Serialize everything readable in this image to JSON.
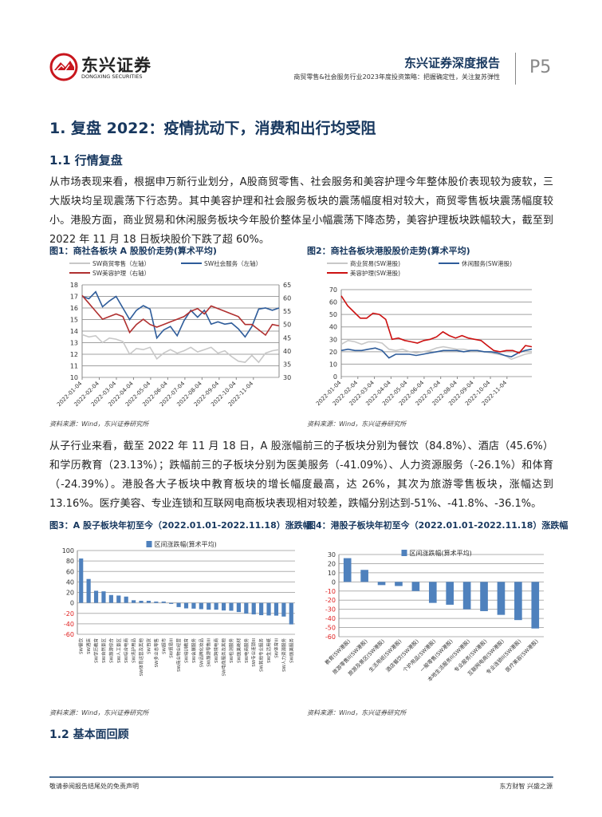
{
  "header": {
    "logo_cn": "东兴证券",
    "logo_en": "DONGXING SECURITIES",
    "report_type": "东兴证券深度报告",
    "subtitle": "商贸零售&社会服务行业2023年度投资策略：把握确定性，关注复苏弹性",
    "page": "P5"
  },
  "section": {
    "h1": "1. 复盘 2022：疫情扰动下，消费和出行均受阻",
    "h2_1": "1.1 行情复盘",
    "p1": "从市场表现来看，根据申万新行业划分，A股商贸零售、社会服务和美容护理今年整体股价表现较为疲软，三大版块均呈现震荡下行态势。其中美容护理和社会服务板块的震荡幅度相对较大，商贸零售板块震荡幅度较小。港股方面，商业贸易和休闲服务板块今年股价整体呈小幅震荡下降态势，美容护理板块跌幅较大，截至到 2022 年 11 月 18 日板块股价下跌了超 60%。",
    "p2": "从子行业来看，截至 2022 年 11 月 18 日，A 股涨幅前三的子板块分别为餐饮（84.8%）、酒店（45.6%）和学历教育（23.13%）；跌幅前三的子板块分别为医美服务（-41.09%）、人力资源服务（-26.1%）和体育（-24.39%）。港股各大子板块中教育板块的增长幅度最高，达 26%，其次为旅游零售板块，涨幅达到 13.16%。医疗美容、专业连锁和互联网电商板块表现相对较差，跌幅分别达到-51%、-41.8%、-36.1%。",
    "h2_2": "1.2 基本面回顾"
  },
  "source_note": "资料来源：Wind，东兴证券研究所",
  "footer": {
    "left": "敬请参阅报告结尾处的免责声明",
    "right": "东方财智 兴盛之源"
  },
  "colors": {
    "navy": "#17375e",
    "logo_red": "#c8161d",
    "blue": "#2e5c9a",
    "red_line": "#b03030",
    "gray_line": "#c8c8c8",
    "bar": "#4f81bd",
    "neg_tick": "#e02020"
  },
  "chart_data": [
    {
      "type": "line",
      "title": "图1：商社各板块 A 股股价走势(算术平均)",
      "x_ticks": [
        "2022-01-04",
        "2022-02-04",
        "2022-03-04",
        "2022-04-04",
        "2022-05-04",
        "2022-06-04",
        "2022-07-04",
        "2022-08-04",
        "2022-09-04",
        "2022-10-04",
        "2022-11-04"
      ],
      "ylim_left": [
        10,
        18
      ],
      "yticks_left": [
        "10",
        "11",
        "12",
        "13",
        "14",
        "15",
        "16",
        "17",
        "18"
      ],
      "ylim_right": [
        30,
        65
      ],
      "yticks_right": [
        "30",
        "35",
        "40",
        "45",
        "50",
        "55",
        "60",
        "65"
      ],
      "series": [
        {
          "name": "SW商贸零售（左轴）",
          "axis": "left",
          "color": "#c8c8c8",
          "values": [
            13.7,
            13.5,
            13.6,
            13.0,
            13.4,
            13.3,
            13.1,
            12.0,
            12.5,
            12.4,
            12.6,
            11.6,
            12.1,
            12.4,
            12.1,
            12.3,
            12.6,
            12.2,
            12.4,
            12.6,
            12.1,
            12.3,
            11.8,
            11.4,
            11.3,
            11.9,
            11.3,
            12.1,
            12.3,
            12.4
          ]
        },
        {
          "name": "SW社会服务（左轴）",
          "axis": "left",
          "color": "#2e5c9a",
          "values": [
            17.0,
            16.8,
            17.4,
            16.1,
            16.6,
            17.0,
            16.0,
            15.0,
            15.8,
            16.2,
            15.9,
            13.4,
            14.1,
            14.4,
            13.6,
            14.9,
            15.8,
            15.2,
            15.8,
            14.6,
            14.8,
            14.6,
            14.7,
            14.2,
            13.5,
            14.4,
            15.9,
            16.0,
            15.8,
            16.0
          ]
        },
        {
          "name": "SW美容护理（右轴）",
          "axis": "right",
          "color": "#b03030",
          "values": [
            61,
            58,
            55,
            52,
            53,
            54,
            53,
            47,
            50,
            52,
            50,
            49,
            50,
            51,
            52,
            53,
            55,
            56,
            54,
            57,
            56,
            55,
            54,
            53,
            50,
            50,
            48,
            46,
            50,
            49.5
          ]
        }
      ]
    },
    {
      "type": "line",
      "title": "图2：商社各板块港股股价走势(算术平均)",
      "x_ticks": [
        "2022-01-04",
        "2022-02-04",
        "2022-03-04",
        "2022-04-04",
        "2022-05-04",
        "2022-06-04",
        "2022-07-04",
        "2022-08-04",
        "2022-09-04",
        "2022-10-04",
        "2022-11-04"
      ],
      "ylim": [
        0,
        70
      ],
      "yticks": [
        "0",
        "10",
        "20",
        "30",
        "40",
        "50",
        "60",
        "70"
      ],
      "series": [
        {
          "name": "商业贸易(SW港股)",
          "color": "#c8c8c8",
          "values": [
            26,
            29,
            28,
            26,
            28,
            28,
            27,
            22,
            21,
            22,
            20,
            19,
            20,
            21,
            23,
            24,
            23,
            22,
            22,
            21,
            21,
            20,
            19,
            18,
            17,
            14,
            16,
            18,
            19
          ]
        },
        {
          "name": "休闲服务(SW港股)",
          "color": "#2e5c9a",
          "values": [
            21,
            22,
            21,
            21,
            22,
            23,
            21,
            15,
            18,
            18,
            18,
            17,
            18,
            19,
            20,
            21,
            21,
            21,
            20,
            21,
            21,
            20,
            20,
            19,
            17,
            16,
            19,
            21,
            22
          ]
        },
        {
          "name": "美容护理(SW港股)",
          "color": "#cc1111",
          "values": [
            65,
            57,
            52,
            47,
            47,
            51,
            50,
            46,
            30,
            31,
            29,
            28,
            27,
            29,
            30,
            32,
            36,
            33,
            31,
            33,
            31,
            30,
            29,
            25,
            21,
            20,
            21,
            21,
            19,
            25,
            24
          ]
        }
      ]
    },
    {
      "type": "bar",
      "title": "图3：A 股子板块年初至今（2022.01.01-2022.11.18）涨跌幅",
      "legend": "区间涨跌幅(算术平均)",
      "ylim": [
        -60,
        100
      ],
      "yticks": [
        "-60",
        "-40",
        "-20",
        "0",
        "20",
        "40",
        "60",
        "80",
        "100"
      ],
      "categories": [
        "SW餐饮",
        "SW酒店",
        "SW学历教育",
        "SW自然景区",
        "SW旅游综合",
        "SW人工景区",
        "SW综合电商",
        "SW洗护用品",
        "SW体育运营及其他",
        "SW百货",
        "SW多业态零售",
        "SW超市",
        "SW贸易III",
        "SW商业物业经营",
        "SW培训教育",
        "SW会展服务",
        "SW品牌化妆品",
        "SW旅游零售III",
        "SW跨境电商",
        "SW电商服务及其他",
        "SW检测服务",
        "SW医美耗材",
        "SW电商服务",
        "SW专业连锁III",
        "SW其他专业服务",
        "SW生活用纸",
        "SW体育III",
        "SW人力资源服务",
        "SW医美服务"
      ],
      "values": [
        84.8,
        45.6,
        23.13,
        22,
        15,
        14,
        12,
        5,
        4,
        4,
        2.5,
        2.5,
        -2,
        -8,
        -10.5,
        -11,
        -12,
        -13,
        -13,
        -14.5,
        -15,
        -17.5,
        -20.5,
        -22,
        -23.5,
        -24,
        -24.39,
        -26.1,
        -41.09
      ]
    },
    {
      "type": "bar",
      "title": "图4：港股子板块年初至今（2022.01.01-2022.11.18）涨跌幅",
      "legend": "区间涨跌幅(算术平均)",
      "ylim": [
        -60,
        30
      ],
      "yticks": [
        "-60",
        "-50",
        "-40",
        "-30",
        "-20",
        "-10",
        "0",
        "10",
        "20",
        "30"
      ],
      "categories": [
        "教育(SW港股)",
        "旅游零售II(SW港股)",
        "旅游及景区(SW港股)",
        "生活用纸(SW港股)",
        "酒店餐饮(SW港股)",
        "个护用品(SW港股)",
        "一般零售(SW港股)",
        "本地生活服务II(SW港股)",
        "专业服务(SW港股)",
        "互联网电商(SW港股)",
        "专业连锁II(SW港股)",
        "医疗美容(SW港股)"
      ],
      "values": [
        26,
        13.16,
        -3.5,
        -4.5,
        -10,
        -23,
        -25,
        -30,
        -32,
        -36.1,
        -41.8,
        -51
      ]
    }
  ]
}
